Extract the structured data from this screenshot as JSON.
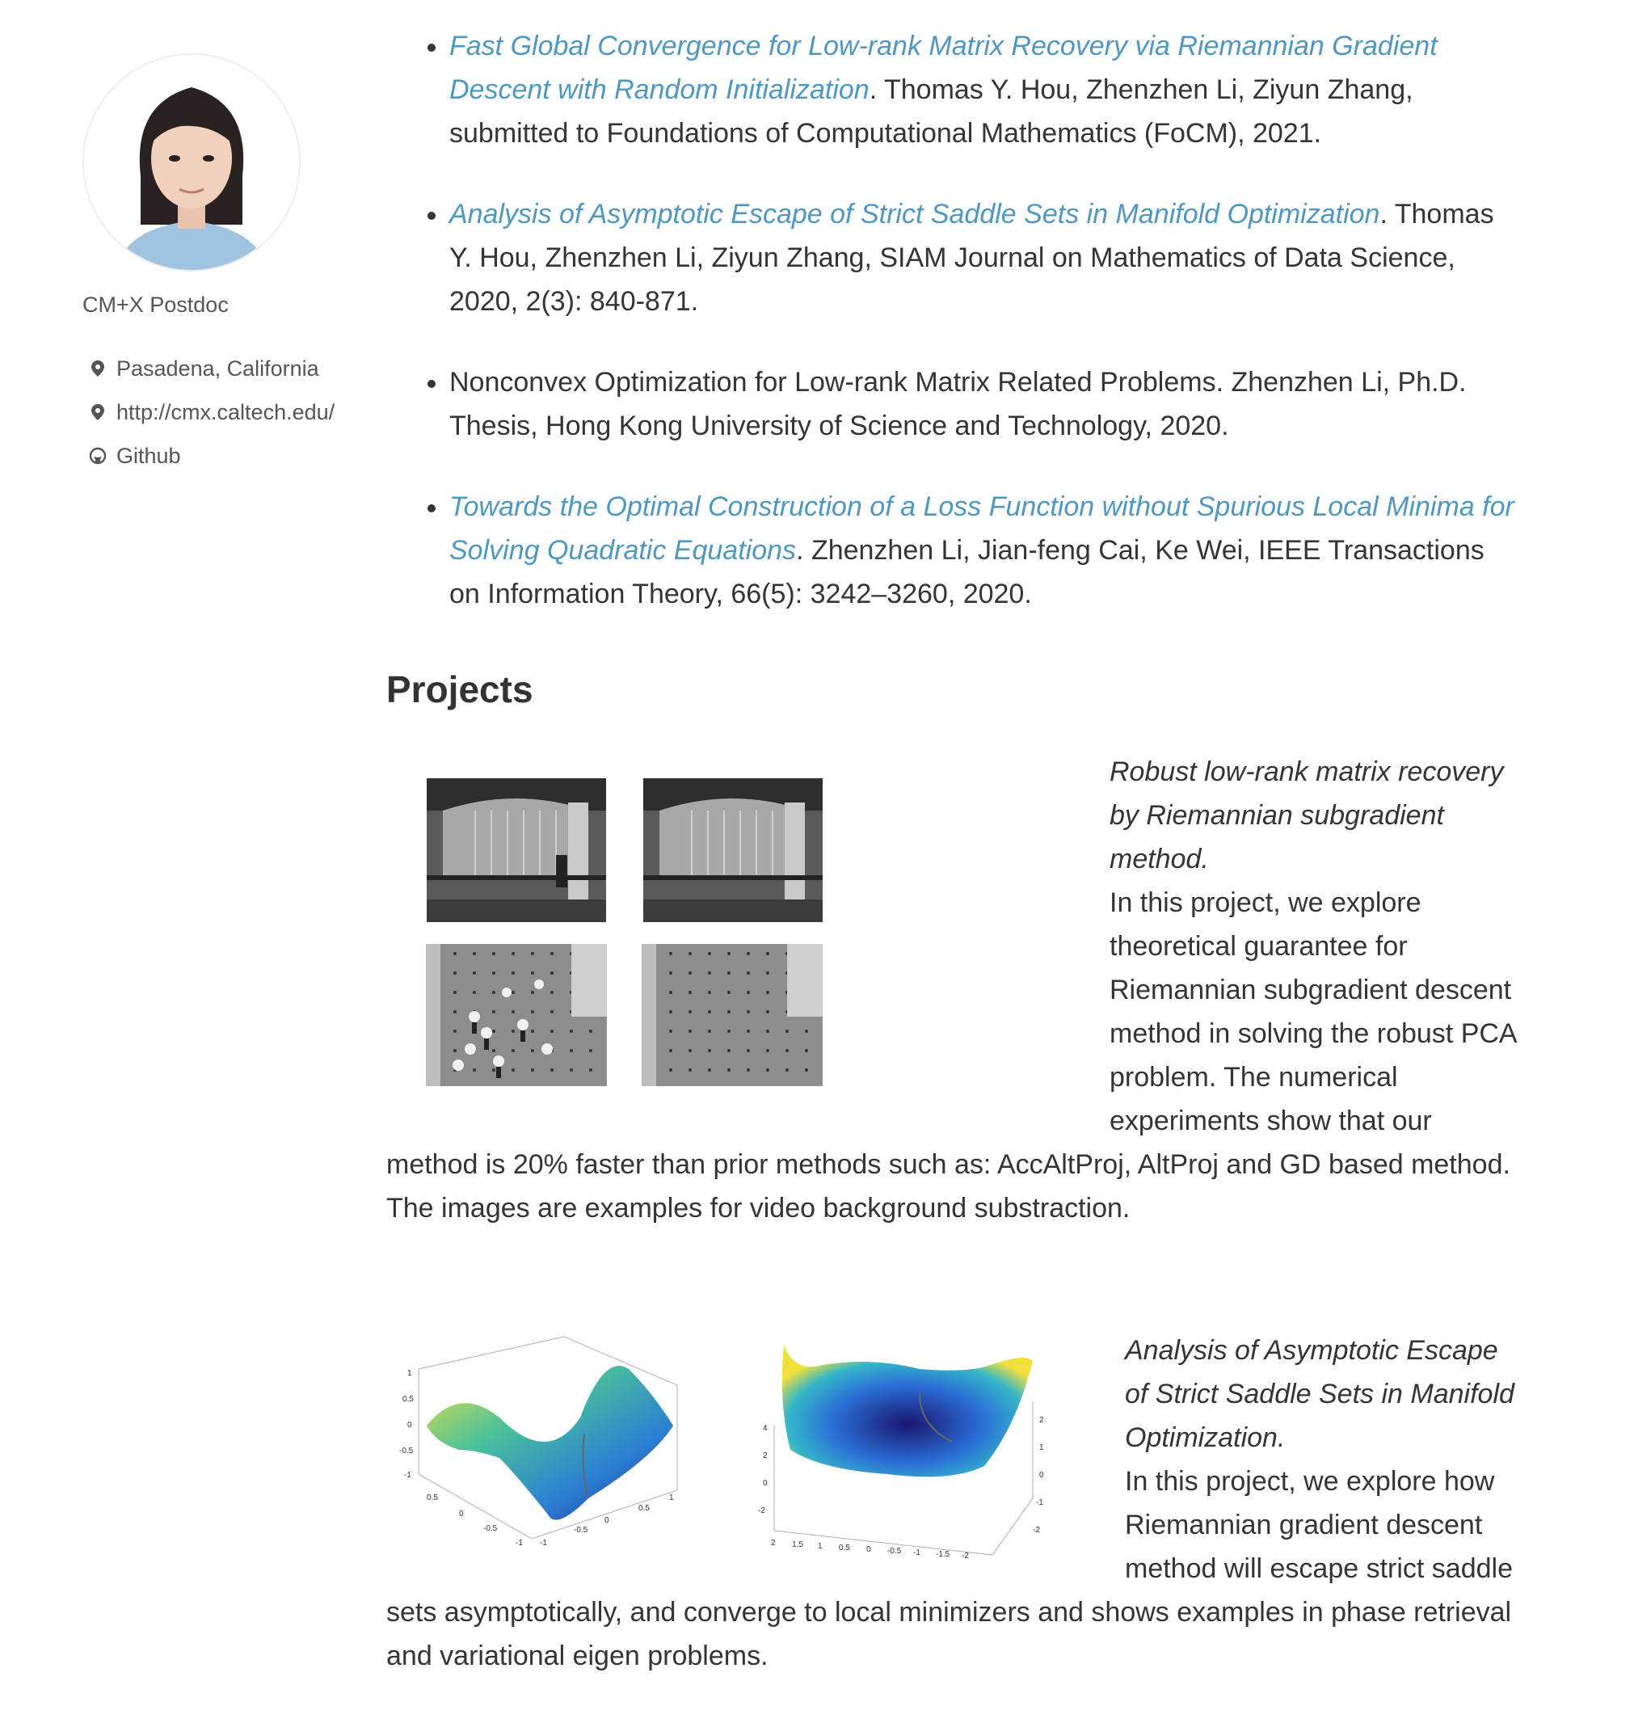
{
  "sidebar": {
    "bio": "CM+X Postdoc",
    "links": [
      {
        "icon": "location-pin-icon",
        "label": "Pasadena, California"
      },
      {
        "icon": "location-pin-icon",
        "label": "http://cmx.caltech.edu/"
      },
      {
        "icon": "github-icon",
        "label": "Github"
      }
    ]
  },
  "publications": [
    {
      "title": "Fast Global Convergence for Low-rank Matrix Recovery via Riemannian Gradient Descent with Random Initialization",
      "rest": ". Thomas Y. Hou, Zhenzhen Li, Ziyun Zhang, submitted to Foundations of Computational Mathematics (FoCM), 2021."
    },
    {
      "title": "Analysis of Asymptotic Escape of Strict Saddle Sets in Manifold Optimization",
      "rest": ". Thomas Y. Hou, Zhenzhen Li, Ziyun Zhang, SIAM Journal on Mathematics of Data Science, 2020, 2(3): 840-871."
    },
    {
      "title": "",
      "rest": "Nonconvex Optimization for Low-rank Matrix Related Problems. Zhenzhen Li, Ph.D. Thesis, Hong Kong University of Science and Technology, 2020."
    },
    {
      "title": "Towards the Optimal Construction of a Loss Function without Spurious Local Minima for Solving Quadratic Equations",
      "rest": ". Zhenzhen Li, Jian-feng Cai, Ke Wei, IEEE Transactions on Information Theory, 66(5): 3242–3260, 2020."
    }
  ],
  "projects_heading": "Projects",
  "projects": [
    {
      "title": "Robust low-rank matrix recovery by Riemannian subgradient method.",
      "text": "In this project, we explore theoretical guarantee for Riemannian subgradient descent method in solving the robust PCA problem. The numerical experiments show that our method is 20% faster than prior methods such as: AccAltProj, AltProj and GD based method. The images are examples for video background substraction."
    },
    {
      "title": "Analysis of Asymptotic Escape of Strict Saddle Sets in Manifold Optimization.",
      "text": "In this project, we explore how Riemannian gradient descent method will escape strict saddle sets asymptotically, and converge to local minimizers and shows examples in phase retrieval and variational eigen problems."
    }
  ],
  "plot_ticks": {
    "left_z": [
      "1",
      "0.5",
      "0",
      "-0.5",
      "-1"
    ],
    "left_x": [
      "0.5",
      "0",
      "-0.5",
      "-1"
    ],
    "left_y": [
      "-1",
      "-0.5",
      "0",
      "0.5",
      "1"
    ],
    "right_z": [
      "4",
      "2",
      "0",
      "-2"
    ],
    "right_x": [
      "2",
      "1.5",
      "1",
      "0.5",
      "0",
      "-0.5",
      "-1",
      "-1.5",
      "-2"
    ],
    "right_y": [
      "2",
      "1",
      "0",
      "-1",
      "-2"
    ]
  }
}
